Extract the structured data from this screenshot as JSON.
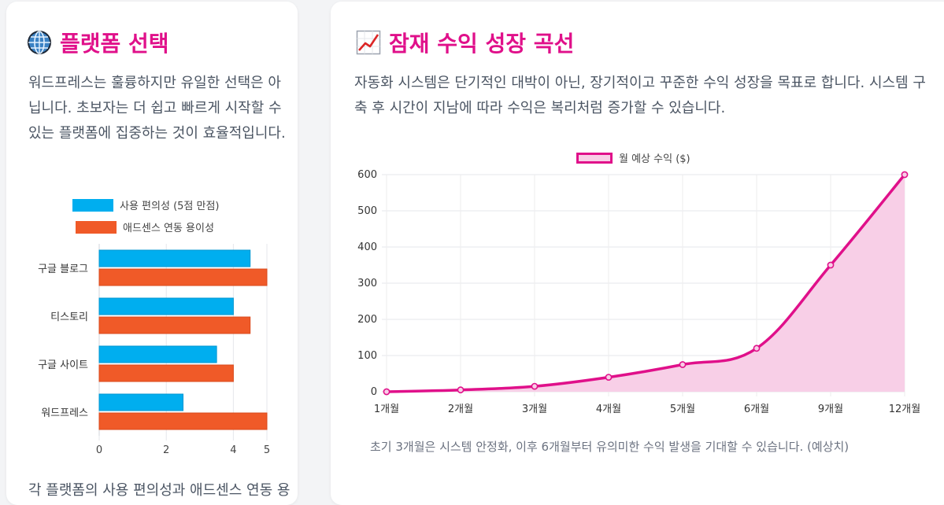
{
  "platform_card": {
    "title": "플랫폼 선택",
    "icon": "globe-icon",
    "description": "워드프레스는 훌륭하지만 유일한 선택은 아닙니다. 초보자는 더 쉽고 빠르게 시작할 수 있는 플랫폼에 집중하는 것이 효율적입니다.",
    "footer_text": "각 플랫폼의 사용 편의성과 애드센스 연동 용"
  },
  "growth_card": {
    "title": "잠재 수익 성장 곡선",
    "icon": "chart-increasing-icon",
    "description": "자동화 시스템은 단기적인 대박이 아닌, 장기적이고 꾸준한 수익 성장을 목표로 합니다. 시스템 구축 후 시간이 지남에 따라 수익은 복리처럼 증가할 수 있습니다.",
    "note": "초기 3개월은 시스템 안정화, 이후 6개월부터 유의미한 수익 발생을 기대할 수 있습니다. (예상치)"
  },
  "chart_data": [
    {
      "type": "bar",
      "orientation": "horizontal",
      "categories": [
        "구글 블로그",
        "티스토리",
        "구글 사이트",
        "워드프레스"
      ],
      "series": [
        {
          "name": "사용 편의성 (5점 만점)",
          "color": "#00aeef",
          "values": [
            4.5,
            4,
            3.5,
            2.5
          ]
        },
        {
          "name": "애드센스 연동 용이성",
          "color": "#f05a28",
          "values": [
            5,
            4.5,
            4,
            5
          ]
        }
      ],
      "x_ticks": [
        0,
        2,
        4,
        5
      ],
      "xlim": [
        0,
        5
      ],
      "legend": "top",
      "grid": true
    },
    {
      "type": "area",
      "categories": [
        "1개월",
        "2개월",
        "3개월",
        "4개월",
        "5개월",
        "6개월",
        "9개월",
        "12개월"
      ],
      "series": [
        {
          "name": "월 예상 수익 ($)",
          "color": "#e0108a",
          "values": [
            0,
            5,
            15,
            40,
            75,
            120,
            350,
            600
          ]
        }
      ],
      "y_ticks": [
        0,
        100,
        200,
        300,
        400,
        500,
        600
      ],
      "ylim": [
        0,
        600
      ],
      "legend": "top",
      "grid": true
    }
  ]
}
